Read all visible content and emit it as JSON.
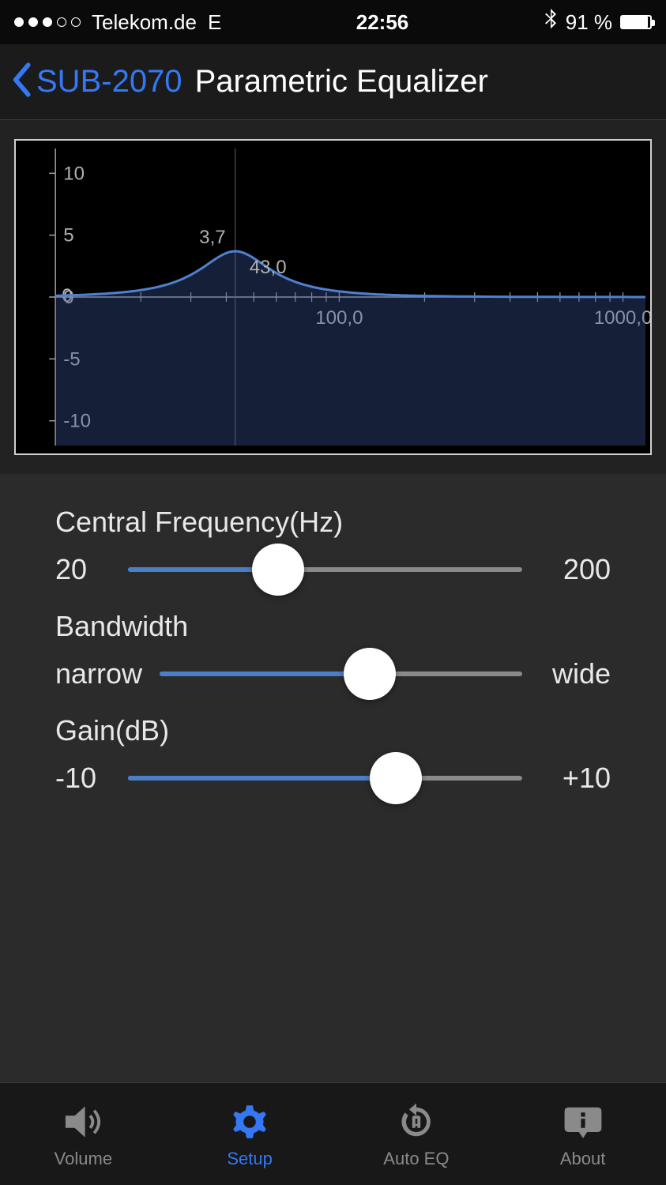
{
  "status_bar": {
    "carrier": "Telekom.de",
    "network": "E",
    "time": "22:56",
    "battery_percent": "91 %",
    "battery_level": 91,
    "signal_filled": 3,
    "signal_total": 5,
    "bluetooth": true
  },
  "nav": {
    "back_label": "SUB-2070",
    "title": "Parametric Equalizer"
  },
  "graph": {
    "type": "eq-curve",
    "x_scale": "log",
    "x_min": 10,
    "x_max": 1200,
    "y_min": -12,
    "y_max": 12,
    "y_ticks": [
      -10,
      -5,
      0,
      5,
      10
    ],
    "x_labels": [
      {
        "value": 100,
        "text": "100,0"
      },
      {
        "value": 1000,
        "text": "1000,0"
      }
    ],
    "peak_freq": 43.0,
    "peak_freq_label": "43,0",
    "peak_gain": 3.7,
    "peak_gain_label": "3,7",
    "zero_label": "0",
    "curve_color": "#5080d0",
    "fill_color": "rgba(60,90,160,0.35)",
    "axis_color": "#a0a0a0",
    "grid_color": "#606060",
    "text_color": "#b0b0b0",
    "background": "#000000",
    "bandwidth_q": 1.4
  },
  "controls": [
    {
      "id": "frequency",
      "label": "Central Frequency(Hz)",
      "min_label": "20",
      "max_label": "200",
      "fill_percent": 38
    },
    {
      "id": "bandwidth",
      "label": "Bandwidth",
      "min_label": "narrow",
      "max_label": "wide",
      "fill_percent": 58
    },
    {
      "id": "gain",
      "label": "Gain(dB)",
      "min_label": "-10",
      "max_label": "+10",
      "fill_percent": 68
    }
  ],
  "tabs": [
    {
      "id": "volume",
      "label": "Volume",
      "icon": "volume-icon",
      "active": false
    },
    {
      "id": "setup",
      "label": "Setup",
      "icon": "gear-icon",
      "active": true
    },
    {
      "id": "autoeq",
      "label": "Auto EQ",
      "icon": "autoeq-icon",
      "active": false
    },
    {
      "id": "about",
      "label": "About",
      "icon": "about-icon",
      "active": false
    }
  ],
  "colors": {
    "accent": "#3478f6",
    "slider_fill": "#4a7ec9",
    "slider_track": "#8a8a8a",
    "thumb": "#ffffff",
    "bg_dark": "#1a1a1a",
    "bg_controls": "#2b2b2b"
  }
}
